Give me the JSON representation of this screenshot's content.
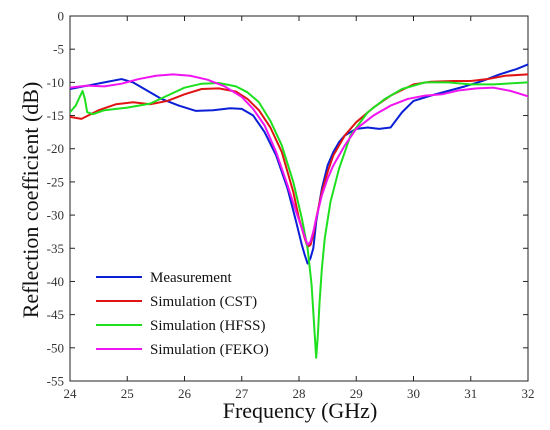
{
  "chart_data": {
    "type": "line",
    "xlabel": "Frequency (GHz)",
    "ylabel": "Reflection coefficient (dB)",
    "xlim": [
      24,
      32
    ],
    "ylim": [
      -55,
      0
    ],
    "xticks": [
      24,
      25,
      26,
      27,
      28,
      29,
      30,
      31,
      32
    ],
    "yticks": [
      0,
      -5,
      -10,
      -15,
      -20,
      -25,
      -30,
      -35,
      -40,
      -45,
      -50,
      -55
    ],
    "grid": false,
    "legend_position": "bottom-left",
    "series": [
      {
        "name": "Measurement",
        "color": "#0a1fd6",
        "x": [
          24.0,
          24.3,
          24.6,
          24.9,
          25.1,
          25.3,
          25.6,
          25.9,
          26.2,
          26.5,
          26.8,
          27.0,
          27.2,
          27.4,
          27.6,
          27.8,
          27.95,
          28.05,
          28.1,
          28.15,
          28.2,
          28.25,
          28.3,
          28.4,
          28.5,
          28.6,
          28.7,
          28.8,
          28.9,
          29.0,
          29.2,
          29.4,
          29.6,
          29.8,
          30.0,
          30.3,
          30.6,
          30.9,
          31.2,
          31.5,
          31.8,
          32.0
        ],
        "y": [
          -11.0,
          -10.5,
          -10.0,
          -9.5,
          -10.0,
          -11.0,
          -12.5,
          -13.5,
          -14.3,
          -14.2,
          -13.9,
          -14.0,
          -15.0,
          -17.5,
          -21.0,
          -26.0,
          -31.0,
          -34.5,
          -36.0,
          -37.3,
          -36.5,
          -35.0,
          -31.0,
          -26.0,
          -22.5,
          -20.5,
          -19.0,
          -18.0,
          -17.5,
          -17.0,
          -16.8,
          -17.0,
          -16.8,
          -14.5,
          -12.8,
          -12.0,
          -11.3,
          -10.6,
          -9.8,
          -8.8,
          -8.0,
          -7.3
        ]
      },
      {
        "name": "Simulation (CST)",
        "color": "#e01414",
        "x": [
          24.0,
          24.2,
          24.5,
          24.8,
          25.1,
          25.4,
          25.7,
          26.0,
          26.3,
          26.6,
          26.9,
          27.1,
          27.3,
          27.5,
          27.7,
          27.9,
          28.0,
          28.1,
          28.15,
          28.2,
          28.25,
          28.3,
          28.4,
          28.5,
          28.6,
          28.8,
          29.0,
          29.3,
          29.6,
          30.0,
          30.3,
          30.7,
          31.0,
          31.3,
          31.6,
          32.0
        ],
        "y": [
          -15.2,
          -15.5,
          -14.2,
          -13.3,
          -13.0,
          -13.3,
          -12.8,
          -11.8,
          -11.0,
          -10.9,
          -11.4,
          -12.5,
          -14.2,
          -16.8,
          -20.5,
          -26.5,
          -30.5,
          -33.5,
          -34.8,
          -34.5,
          -33.0,
          -30.5,
          -26.5,
          -23.5,
          -21.0,
          -18.0,
          -16.0,
          -13.8,
          -12.0,
          -10.3,
          -9.9,
          -9.8,
          -9.8,
          -9.5,
          -9.0,
          -8.8
        ]
      },
      {
        "name": "Simulation (HFSS)",
        "color": "#1ee01e",
        "x": [
          24.0,
          24.1,
          24.18,
          24.22,
          24.26,
          24.3,
          24.4,
          24.6,
          25.0,
          25.4,
          25.7,
          26.0,
          26.3,
          26.6,
          26.9,
          27.1,
          27.3,
          27.5,
          27.7,
          27.9,
          28.05,
          28.15,
          28.22,
          28.26,
          28.3,
          28.33,
          28.36,
          28.4,
          28.45,
          28.55,
          28.7,
          28.9,
          29.2,
          29.5,
          29.8,
          30.2,
          30.6,
          31.0,
          31.4,
          32.0
        ],
        "y": [
          -14.5,
          -13.5,
          -12.0,
          -11.3,
          -12.5,
          -14.5,
          -14.8,
          -14.2,
          -13.8,
          -13.2,
          -12.0,
          -10.8,
          -10.2,
          -10.1,
          -10.6,
          -11.5,
          -13.0,
          -15.8,
          -19.5,
          -25.0,
          -30.5,
          -35.0,
          -40.5,
          -46.0,
          -51.5,
          -48.0,
          -43.0,
          -38.0,
          -33.5,
          -28.0,
          -23.0,
          -18.0,
          -14.5,
          -12.5,
          -11.0,
          -10.0,
          -10.0,
          -10.3,
          -10.3,
          -10.0
        ]
      },
      {
        "name": "Simulation (FEKO)",
        "color": "#f014f0",
        "x": [
          24.0,
          24.3,
          24.6,
          24.9,
          25.2,
          25.5,
          25.8,
          26.1,
          26.4,
          26.7,
          27.0,
          27.2,
          27.4,
          27.6,
          27.8,
          27.95,
          28.05,
          28.15,
          28.2,
          28.25,
          28.3,
          28.4,
          28.5,
          28.6,
          28.8,
          29.0,
          29.3,
          29.6,
          29.9,
          30.2,
          30.5,
          30.8,
          31.1,
          31.4,
          31.7,
          32.0
        ],
        "y": [
          -10.8,
          -10.5,
          -10.6,
          -10.2,
          -9.5,
          -9.0,
          -8.8,
          -9.0,
          -9.6,
          -10.6,
          -12.2,
          -14.0,
          -16.5,
          -20.5,
          -25.5,
          -29.5,
          -32.0,
          -34.5,
          -34.0,
          -32.5,
          -30.5,
          -27.0,
          -24.5,
          -22.5,
          -19.5,
          -17.0,
          -15.0,
          -13.5,
          -12.5,
          -12.0,
          -11.8,
          -11.2,
          -10.9,
          -10.8,
          -11.3,
          -12.1
        ]
      }
    ]
  }
}
